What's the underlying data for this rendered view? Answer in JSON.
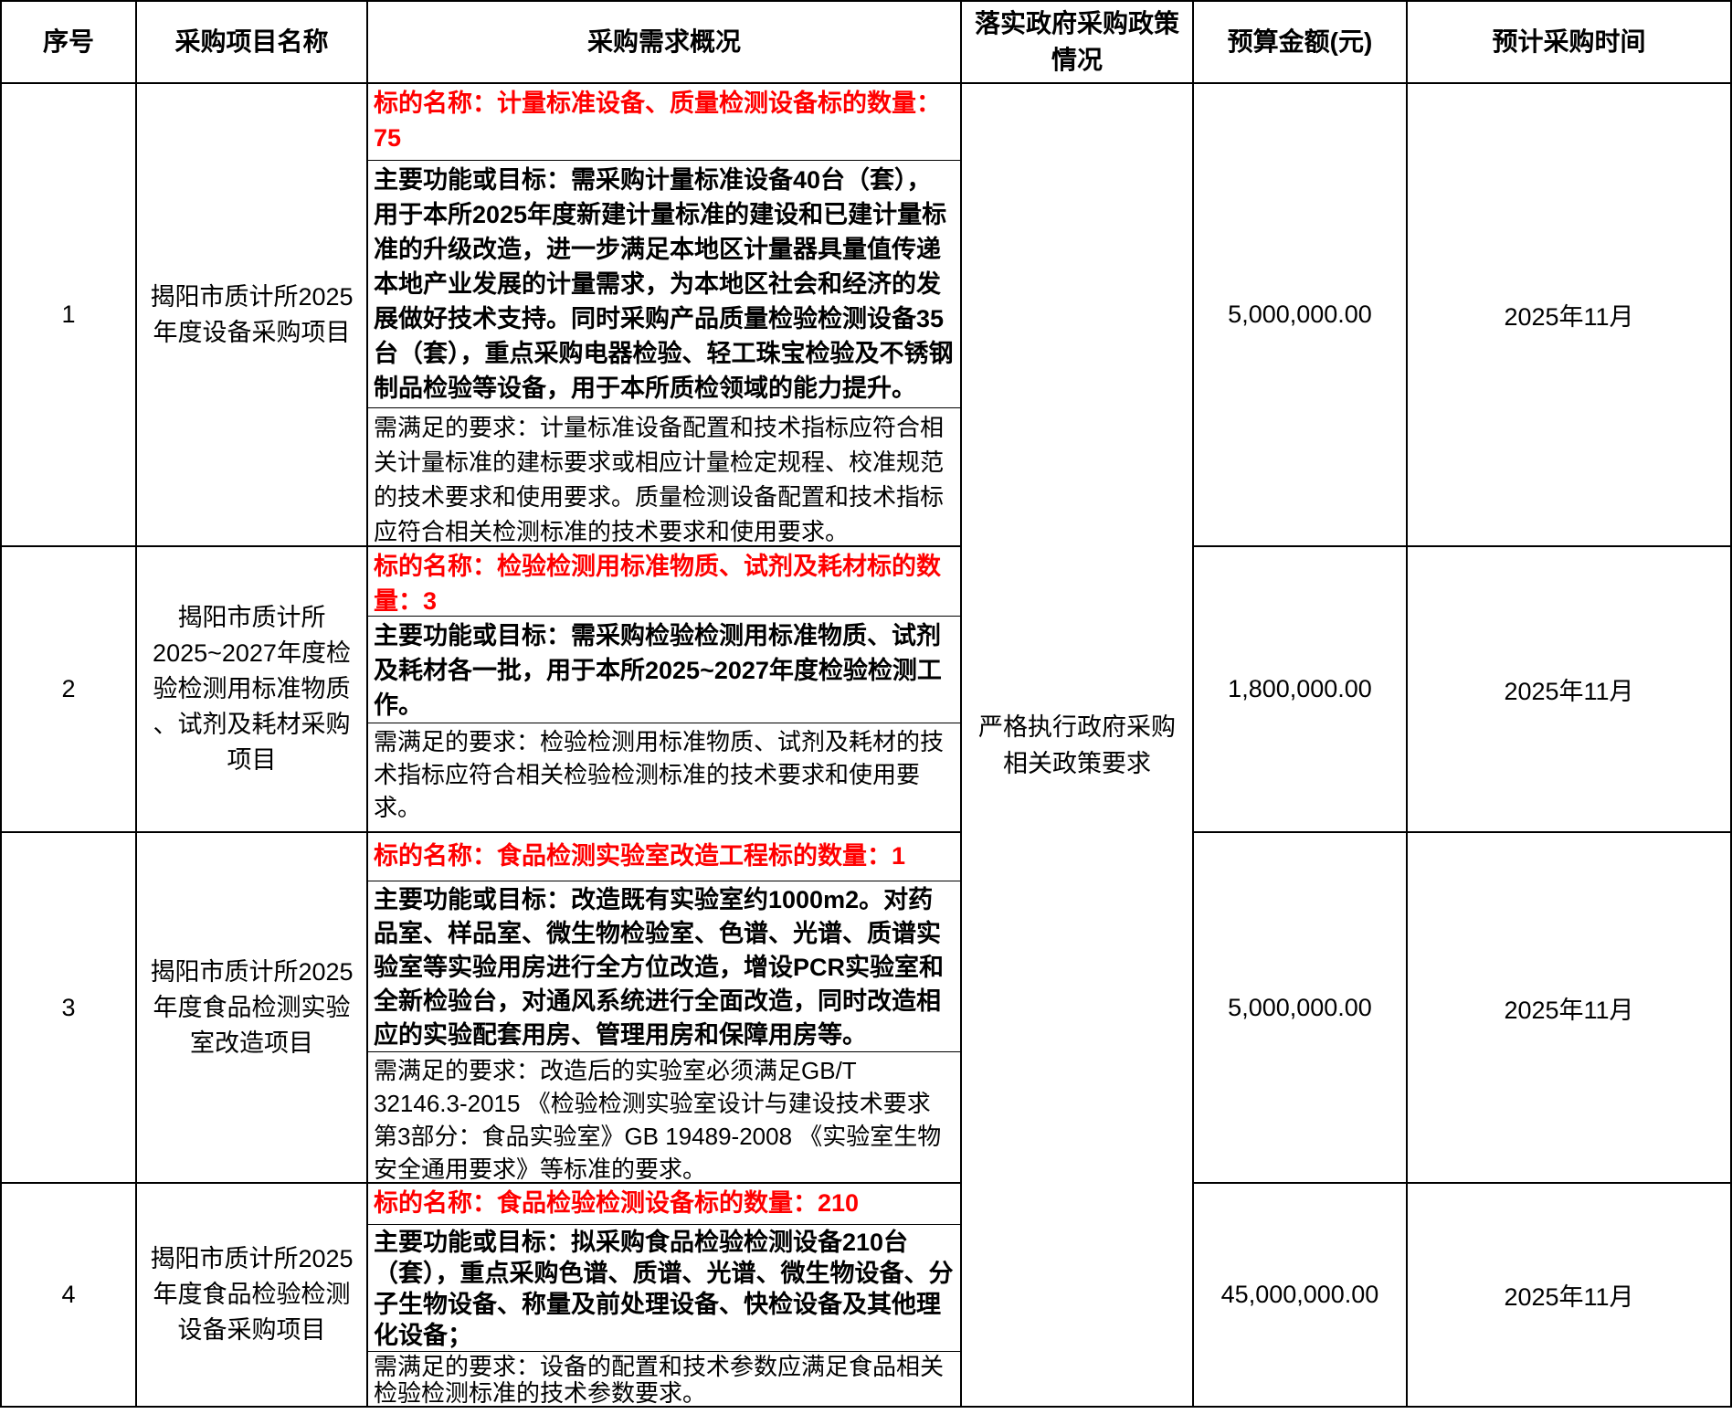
{
  "table": {
    "headers": {
      "no": "序号",
      "project_name": "采购项目名称",
      "demand_overview": "采购需求概况",
      "policy": "落实政府采购政策\n情况",
      "budget": "预算金额(元)",
      "time": "预计采购时间"
    },
    "policy_value": "严格执行政府采购\n相关政策要求",
    "accent_red": "#ff0000",
    "rows": [
      {
        "no": "1",
        "name": "揭阳市质计所2025\n年度设备采购项目",
        "target": "标的名称：计量标准设备、质量检测设备标的数量：75",
        "function": "主要功能或目标：需采购计量标准设备40台（套），用于本所2025年度新建计量标准的建设和已建计量标准的升级改造，进一步满足本地区计量器具量值传递本地产业发展的计量需求，为本地区社会和经济的发展做好技术支持。同时采购产品质量检验检测设备35台（套），重点采购电器检验、轻工珠宝检验及不锈钢制品检验等设备，用于本所质检领域的能力提升。",
        "requirement": "需满足的要求：计量标准设备配置和技术指标应符合相关计量标准的建标要求或相应计量检定规程、校准规范的技术要求和使用要求。质量检测设备配置和技术指标应符合相关检测标准的技术要求和使用要求。",
        "budget": "5,000,000.00",
        "time": "2025年11月"
      },
      {
        "no": "2",
        "name": "揭阳市质计所\n2025~2027年度检\n验检测用标准物质\n、试剂及耗材采购\n项目",
        "target": "标的名称：检验检测用标准物质、试剂及耗材标的数量：3",
        "function": "主要功能或目标：需采购检验检测用标准物质、试剂及耗材各一批，用于本所2025~2027年度检验检测工作。",
        "requirement": "需满足的要求：检验检测用标准物质、试剂及耗材的技术指标应符合相关检验检测标准的技术要求和使用要求。",
        "budget": "1,800,000.00",
        "time": "2025年11月"
      },
      {
        "no": "3",
        "name": "揭阳市质计所2025\n年度食品检测实验\n室改造项目",
        "target": "标的名称：食品检测实验室改造工程标的数量：1",
        "function": "主要功能或目标：改造既有实验室约1000m2。对药品室、样品室、微生物检验室、色谱、光谱、质谱实验室等实验用房进行全方位改造，增设PCR实验室和全新检验台，对通风系统进行全面改造，同时改造相应的实验配套用房、管理用房和保障用房等。",
        "requirement": "需满足的要求：改造后的实验室必须满足GB/T 32146.3-2015 《检验检测实验室设计与建设技术要求 第3部分：食品实验室》GB 19489-2008 《实验室生物安全通用要求》等标准的要求。",
        "budget": "5,000,000.00",
        "time": "2025年11月"
      },
      {
        "no": "4",
        "name": "揭阳市质计所2025\n年度食品检验检测\n设备采购项目",
        "target": "标的名称：食品检验检测设备标的数量：210",
        "function": "主要功能或目标：拟采购食品检验检测设备210台（套），重点采购色谱、质谱、光谱、微生物设备、分子生物设备、称量及前处理设备、快检设备及其他理化设备；",
        "requirement": "需满足的要求：设备的配置和技术参数应满足食品相关检验检测标准的技术参数要求。",
        "budget": "45,000,000.00",
        "time": "2025年11月"
      }
    ]
  }
}
